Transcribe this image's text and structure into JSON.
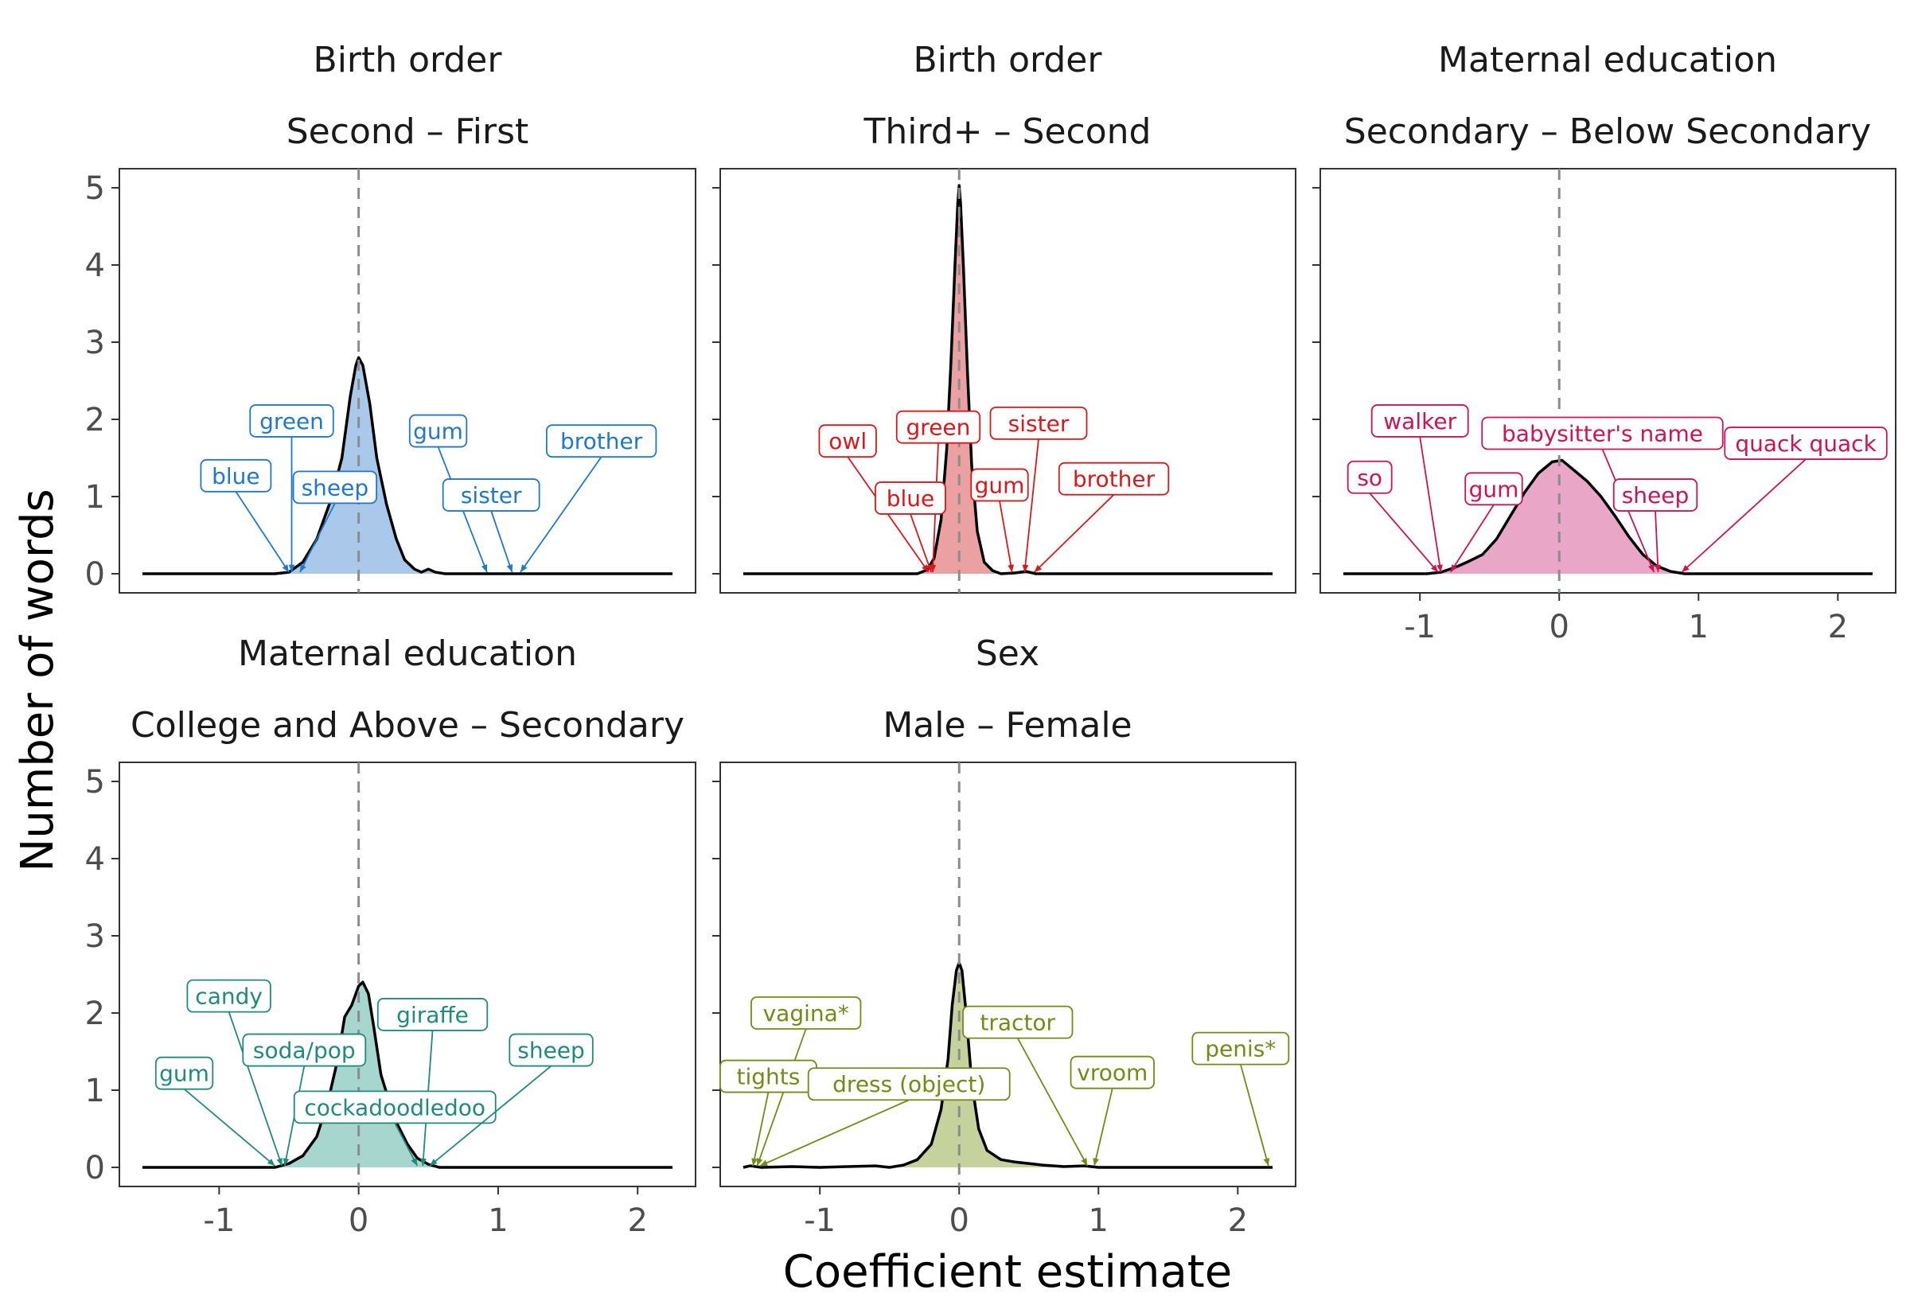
{
  "x_axis_title": "Coefficient estimate",
  "y_axis_title": "Number of words",
  "chart_data": [
    {
      "type": "area",
      "id": "p1",
      "title": "Birth order",
      "subtitle": "Second – First",
      "color": "#1f78c8",
      "fill": "#a9c8ea",
      "xlim": [
        -1.55,
        2.25
      ],
      "ylim": [
        0,
        5
      ],
      "x_tick_labels_shown": false,
      "y_tick_labels_shown": true,
      "density": [
        [
          -1.55,
          0
        ],
        [
          -0.6,
          0
        ],
        [
          -0.5,
          0.02
        ],
        [
          -0.4,
          0.15
        ],
        [
          -0.3,
          0.45
        ],
        [
          -0.2,
          0.95
        ],
        [
          -0.12,
          1.5
        ],
        [
          -0.06,
          2.3
        ],
        [
          -0.02,
          2.7
        ],
        [
          0,
          2.8
        ],
        [
          0.03,
          2.7
        ],
        [
          0.08,
          2.2
        ],
        [
          0.13,
          1.5
        ],
        [
          0.2,
          0.9
        ],
        [
          0.27,
          0.45
        ],
        [
          0.33,
          0.18
        ],
        [
          0.4,
          0.06
        ],
        [
          0.45,
          0.02
        ],
        [
          0.5,
          0.06
        ],
        [
          0.55,
          0.02
        ],
        [
          0.62,
          0
        ],
        [
          2.25,
          0
        ]
      ],
      "labels": [
        {
          "text": "green",
          "x": -0.48,
          "y": 1.98,
          "tx": -0.48
        },
        {
          "text": "blue",
          "x": -0.88,
          "y": 1.27,
          "tx": -0.5
        },
        {
          "text": "sheep",
          "x": -0.17,
          "y": 1.12,
          "tx": -0.42
        },
        {
          "text": "gum",
          "x": 0.57,
          "y": 1.85,
          "tx": 0.92
        },
        {
          "text": "sister",
          "x": 0.95,
          "y": 1.02,
          "tx": 1.1
        },
        {
          "text": "brother",
          "x": 1.74,
          "y": 1.72,
          "tx": 1.16
        }
      ]
    },
    {
      "type": "area",
      "id": "p2",
      "title": "Birth order",
      "subtitle": "Third+ – Second",
      "color": "#d7191c",
      "fill": "#eba0a2",
      "xlim": [
        -1.55,
        2.25
      ],
      "ylim": [
        0,
        5
      ],
      "x_tick_labels_shown": false,
      "y_tick_labels_shown": false,
      "density": [
        [
          -1.55,
          0
        ],
        [
          -0.3,
          0
        ],
        [
          -0.23,
          0.05
        ],
        [
          -0.18,
          0.2
        ],
        [
          -0.13,
          0.7
        ],
        [
          -0.09,
          1.6
        ],
        [
          -0.06,
          2.7
        ],
        [
          -0.03,
          4.0
        ],
        [
          -0.01,
          4.8
        ],
        [
          0,
          5.03
        ],
        [
          0.01,
          4.8
        ],
        [
          0.03,
          4.0
        ],
        [
          0.06,
          2.6
        ],
        [
          0.09,
          1.4
        ],
        [
          0.13,
          0.55
        ],
        [
          0.18,
          0.15
        ],
        [
          0.24,
          0.04
        ],
        [
          0.3,
          0
        ],
        [
          0.4,
          0.01
        ],
        [
          0.48,
          0.03
        ],
        [
          0.55,
          0
        ],
        [
          2.25,
          0
        ]
      ],
      "labels": [
        {
          "text": "owl",
          "x": -0.8,
          "y": 1.72,
          "tx": -0.22
        },
        {
          "text": "green",
          "x": -0.15,
          "y": 1.9,
          "tx": -0.19
        },
        {
          "text": "blue",
          "x": -0.35,
          "y": 0.98,
          "tx": -0.2
        },
        {
          "text": "sister",
          "x": 0.57,
          "y": 1.95,
          "tx": 0.47
        },
        {
          "text": "gum",
          "x": 0.29,
          "y": 1.15,
          "tx": 0.38
        },
        {
          "text": "brother",
          "x": 1.11,
          "y": 1.23,
          "tx": 0.54
        }
      ]
    },
    {
      "type": "area",
      "id": "p3",
      "title": "Maternal education",
      "subtitle": "Secondary – Below Secondary",
      "color": "#ce1256",
      "fill": "#e9a6c6",
      "xlim": [
        -1.55,
        2.25
      ],
      "ylim": [
        0,
        5
      ],
      "x_tick_labels_shown": true,
      "y_tick_labels_shown": false,
      "density": [
        [
          -1.55,
          0
        ],
        [
          -0.95,
          0
        ],
        [
          -0.85,
          0.02
        ],
        [
          -0.75,
          0.08
        ],
        [
          -0.65,
          0.16
        ],
        [
          -0.55,
          0.25
        ],
        [
          -0.45,
          0.45
        ],
        [
          -0.35,
          0.75
        ],
        [
          -0.25,
          1.05
        ],
        [
          -0.15,
          1.3
        ],
        [
          -0.05,
          1.45
        ],
        [
          0.02,
          1.47
        ],
        [
          0.1,
          1.35
        ],
        [
          0.2,
          1.2
        ],
        [
          0.3,
          1.0
        ],
        [
          0.4,
          0.75
        ],
        [
          0.5,
          0.48
        ],
        [
          0.6,
          0.25
        ],
        [
          0.7,
          0.1
        ],
        [
          0.8,
          0.03
        ],
        [
          0.9,
          0
        ],
        [
          2.25,
          0
        ]
      ],
      "labels": [
        {
          "text": "walker",
          "x": -1.0,
          "y": 1.98,
          "tx": -0.85
        },
        {
          "text": "so",
          "x": -1.36,
          "y": 1.25,
          "tx": -0.87
        },
        {
          "text": "gum",
          "x": -0.47,
          "y": 1.1,
          "tx": -0.78
        },
        {
          "text": "babysitter's name",
          "x": 0.31,
          "y": 1.82,
          "tx": 0.68
        },
        {
          "text": "sheep",
          "x": 0.69,
          "y": 1.02,
          "tx": 0.71
        },
        {
          "text": "quack quack",
          "x": 1.77,
          "y": 1.69,
          "tx": 0.88
        }
      ]
    },
    {
      "type": "area",
      "id": "p4",
      "title": "Maternal education",
      "subtitle": "College and Above – Secondary",
      "color": "#1f8a7f",
      "fill": "#a6d6cd",
      "xlim": [
        -1.55,
        2.25
      ],
      "ylim": [
        0,
        5
      ],
      "x_tick_labels_shown": true,
      "y_tick_labels_shown": true,
      "density": [
        [
          -1.55,
          0
        ],
        [
          -0.6,
          0
        ],
        [
          -0.5,
          0.05
        ],
        [
          -0.4,
          0.15
        ],
        [
          -0.3,
          0.4
        ],
        [
          -0.22,
          0.85
        ],
        [
          -0.15,
          1.4
        ],
        [
          -0.1,
          1.95
        ],
        [
          -0.05,
          2.1
        ],
        [
          0,
          2.35
        ],
        [
          0.03,
          2.4
        ],
        [
          0.07,
          2.25
        ],
        [
          0.11,
          1.8
        ],
        [
          0.16,
          1.2
        ],
        [
          0.22,
          0.85
        ],
        [
          0.28,
          0.55
        ],
        [
          0.35,
          0.3
        ],
        [
          0.42,
          0.12
        ],
        [
          0.5,
          0.04
        ],
        [
          0.58,
          0
        ],
        [
          2.25,
          0
        ]
      ],
      "labels": [
        {
          "text": "candy",
          "x": -0.93,
          "y": 2.22,
          "tx": -0.55
        },
        {
          "text": "soda/pop",
          "x": -0.39,
          "y": 1.52,
          "tx": -0.53
        },
        {
          "text": "gum",
          "x": -1.25,
          "y": 1.22,
          "tx": -0.6
        },
        {
          "text": "giraffe",
          "x": 0.53,
          "y": 1.98,
          "tx": 0.46
        },
        {
          "text": "cockadoodledoo",
          "x": 0.26,
          "y": 0.78,
          "tx": 0.42
        },
        {
          "text": "sheep",
          "x": 1.38,
          "y": 1.52,
          "tx": 0.51
        }
      ]
    },
    {
      "type": "area",
      "id": "p5",
      "title": "Sex",
      "subtitle": "Male – Female",
      "color": "#708c15",
      "fill": "#c5d29b",
      "xlim": [
        -1.55,
        2.25
      ],
      "ylim": [
        0,
        5
      ],
      "x_tick_labels_shown": true,
      "y_tick_labels_shown": false,
      "density": [
        [
          -1.55,
          0
        ],
        [
          -1.5,
          0.02
        ],
        [
          -1.42,
          0
        ],
        [
          -1.2,
          0.01
        ],
        [
          -1.0,
          0
        ],
        [
          -0.8,
          0.01
        ],
        [
          -0.6,
          0.02
        ],
        [
          -0.5,
          0
        ],
        [
          -0.4,
          0.03
        ],
        [
          -0.3,
          0.1
        ],
        [
          -0.2,
          0.3
        ],
        [
          -0.13,
          0.75
        ],
        [
          -0.08,
          1.4
        ],
        [
          -0.05,
          2.1
        ],
        [
          -0.02,
          2.55
        ],
        [
          0,
          2.65
        ],
        [
          0.02,
          2.55
        ],
        [
          0.05,
          2.0
        ],
        [
          0.09,
          1.1
        ],
        [
          0.14,
          0.5
        ],
        [
          0.2,
          0.22
        ],
        [
          0.3,
          0.1
        ],
        [
          0.4,
          0.07
        ],
        [
          0.5,
          0.05
        ],
        [
          0.6,
          0.03
        ],
        [
          0.75,
          0.01
        ],
        [
          0.9,
          0.02
        ],
        [
          1.0,
          0
        ],
        [
          2.25,
          0
        ]
      ],
      "labels": [
        {
          "text": "vagina*",
          "x": -1.1,
          "y": 2.0,
          "tx": -1.45
        },
        {
          "text": "tights",
          "x": -1.37,
          "y": 1.18,
          "tx": -1.48
        },
        {
          "text": "dress (object)",
          "x": -0.36,
          "y": 1.08,
          "tx": -1.43
        },
        {
          "text": "tractor",
          "x": 0.42,
          "y": 1.88,
          "tx": 0.92
        },
        {
          "text": "vroom",
          "x": 1.1,
          "y": 1.23,
          "tx": 0.97
        },
        {
          "text": "penis*",
          "x": 2.02,
          "y": 1.54,
          "tx": 2.22
        }
      ]
    }
  ],
  "x_ticks": [
    "-1",
    "0",
    "1",
    "2"
  ],
  "y_ticks": [
    "0",
    "1",
    "2",
    "3",
    "4",
    "5"
  ]
}
